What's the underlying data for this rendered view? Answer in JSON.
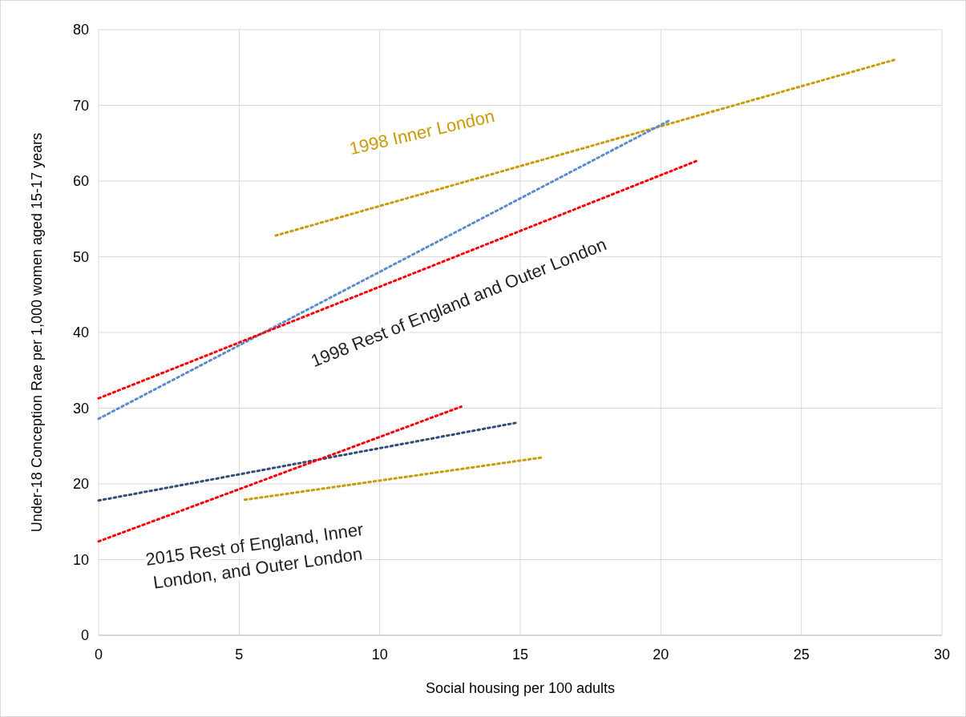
{
  "chart_data": {
    "type": "line",
    "xlabel": "Social housing per 100 adults",
    "ylabel": "Under-18 Conception Rae per 1,000 women aged 15-17 years",
    "xlim": [
      0,
      30
    ],
    "xticks": [
      0,
      5,
      10,
      15,
      20,
      25,
      30
    ],
    "ylim": [
      0,
      80
    ],
    "yticks": [
      0,
      10,
      20,
      30,
      40,
      50,
      60,
      70,
      80
    ],
    "grid": true,
    "line_style": "dotted",
    "series": [
      {
        "color": "#c99a06",
        "x": [
          6.3,
          28.3
        ],
        "values": [
          52.8,
          76
        ]
      },
      {
        "color": "#5b8bd0",
        "x": [
          0,
          20.3
        ],
        "values": [
          28.6,
          68
        ]
      },
      {
        "color": "#ff0000",
        "x": [
          0,
          21.3
        ],
        "values": [
          31.3,
          62.7
        ]
      },
      {
        "color": "#2e4d7a",
        "x": [
          0,
          14.9
        ],
        "values": [
          17.8,
          28.1
        ]
      },
      {
        "color": "#ff0000",
        "x": [
          0,
          12.9
        ],
        "values": [
          12.4,
          30.2
        ]
      },
      {
        "color": "#c99a06",
        "x": [
          5.2,
          15.8
        ],
        "values": [
          17.9,
          23.5
        ]
      }
    ],
    "annotations": [
      "1998 Inner London",
      "1998 Rest of England and Outer London",
      "2015 Rest of England, Inner London, and Outer London"
    ]
  }
}
